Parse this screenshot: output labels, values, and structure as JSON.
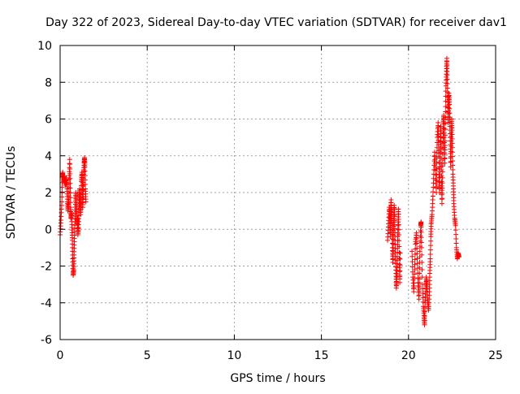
{
  "chart_data": {
    "type": "scatter",
    "title": "Day 322 of 2023, Sidereal Day-to-day VTEC variation (SDTVAR) for receiver dav1",
    "xlabel": "GPS time / hours",
    "ylabel": "SDTVAR / TECUs",
    "xlim": [
      0,
      25
    ],
    "ylim": [
      -6,
      10
    ],
    "xticks": [
      0,
      5,
      10,
      15,
      20,
      25
    ],
    "yticks": [
      -6,
      -4,
      -2,
      0,
      2,
      4,
      6,
      8,
      10
    ],
    "grid": true,
    "marker": "+",
    "colors": {
      "series": "#ff0000",
      "grid": "#a0a0a0",
      "frame": "#000000"
    },
    "series": [
      {
        "name": "SDTVAR",
        "segments": [
          [
            0.0,
            -0.3
          ],
          [
            0.05,
            0.5
          ],
          [
            0.1,
            1.5
          ],
          [
            0.12,
            2.8
          ],
          [
            0.15,
            3.1
          ],
          [
            0.2,
            2.6
          ],
          [
            0.25,
            2.9
          ],
          [
            0.3,
            2.4
          ],
          [
            0.35,
            2.8
          ],
          [
            0.4,
            2.2
          ],
          [
            0.42,
            1.5
          ],
          [
            0.45,
            1.0
          ],
          [
            0.5,
            1.6
          ],
          [
            0.52,
            2.7
          ],
          [
            0.55,
            3.8
          ],
          [
            0.58,
            2.5
          ],
          [
            0.6,
            1.2
          ],
          [
            0.62,
            0.6
          ],
          [
            0.65,
            0.9
          ],
          [
            0.68,
            0.1
          ],
          [
            0.7,
            -0.6
          ],
          [
            0.72,
            -1.6
          ],
          [
            0.75,
            -2.5
          ],
          [
            0.78,
            -2.2
          ],
          [
            0.8,
            -1.4
          ],
          [
            0.82,
            -0.5
          ],
          [
            0.85,
            0.4
          ],
          [
            0.88,
            1.2
          ],
          [
            0.9,
            2.0
          ],
          [
            0.92,
            1.6
          ],
          [
            0.95,
            0.8
          ],
          [
            0.98,
            0.3
          ],
          [
            1.0,
            0.6
          ],
          [
            1.02,
            -0.3
          ],
          [
            1.05,
            0.1
          ],
          [
            1.08,
            0.9
          ],
          [
            1.1,
            1.8
          ],
          [
            1.12,
            2.2
          ],
          [
            1.15,
            1.4
          ],
          [
            1.18,
            0.8
          ],
          [
            1.2,
            1.5
          ],
          [
            1.22,
            2.6
          ],
          [
            1.25,
            3.1
          ],
          [
            1.28,
            2.4
          ],
          [
            1.3,
            1.2
          ],
          [
            1.32,
            1.9
          ],
          [
            1.35,
            3.0
          ],
          [
            1.38,
            3.6
          ],
          [
            1.4,
            3.9
          ],
          [
            1.42,
            3.4
          ],
          [
            1.45,
            2.2
          ],
          [
            1.48,
            1.5
          ]
        ],
        "segment2": [
          [
            18.8,
            -0.6
          ],
          [
            18.85,
            0.3
          ],
          [
            18.9,
            1.2
          ],
          [
            18.92,
            0.6
          ],
          [
            18.95,
            -0.4
          ],
          [
            18.98,
            0.8
          ],
          [
            19.0,
            1.6
          ],
          [
            19.02,
            0.9
          ],
          [
            19.05,
            0.2
          ],
          [
            19.08,
            -1.0
          ],
          [
            19.1,
            -1.8
          ],
          [
            19.12,
            -0.8
          ],
          [
            19.15,
            0.4
          ],
          [
            19.18,
            1.3
          ],
          [
            19.2,
            0.7
          ],
          [
            19.22,
            -0.4
          ],
          [
            19.25,
            -1.5
          ],
          [
            19.28,
            -2.4
          ],
          [
            19.3,
            -3.2
          ],
          [
            19.32,
            -2.6
          ],
          [
            19.35,
            -1.7
          ],
          [
            19.38,
            -0.6
          ],
          [
            19.4,
            0.4
          ],
          [
            19.42,
            1.1
          ],
          [
            19.45,
            -0.3
          ],
          [
            19.48,
            -1.9
          ],
          [
            19.5,
            -2.9
          ],
          [
            19.52,
            -1.3
          ],
          [
            20.2,
            -1.2
          ],
          [
            20.25,
            -2.6
          ],
          [
            20.3,
            -3.4
          ],
          [
            20.35,
            -2.2
          ],
          [
            20.4,
            -0.8
          ],
          [
            20.45,
            -0.2
          ],
          [
            20.5,
            -1.6
          ],
          [
            20.55,
            -2.9
          ],
          [
            20.6,
            -3.8
          ],
          [
            20.62,
            -2.7
          ],
          [
            20.65,
            -1.2
          ],
          [
            20.7,
            0.2
          ],
          [
            20.72,
            0.4
          ],
          [
            20.75,
            -1.0
          ],
          [
            20.8,
            -3.0
          ],
          [
            20.85,
            -4.2
          ],
          [
            20.9,
            -4.8
          ],
          [
            20.92,
            -5.2
          ],
          [
            20.95,
            -4.0
          ],
          [
            21.0,
            -3.2
          ],
          [
            21.02,
            -2.6
          ],
          [
            21.05,
            -3.1
          ],
          [
            21.1,
            -3.9
          ],
          [
            21.15,
            -4.4
          ],
          [
            21.2,
            -3.4
          ],
          [
            21.22,
            -2.4
          ],
          [
            21.25,
            -1.6
          ],
          [
            21.28,
            -0.4
          ],
          [
            21.3,
            0.3
          ],
          [
            21.35,
            0.8
          ],
          [
            21.4,
            1.8
          ],
          [
            21.45,
            3.0
          ],
          [
            21.5,
            4.2
          ],
          [
            21.55,
            3.2
          ],
          [
            21.6,
            2.0
          ],
          [
            21.62,
            3.6
          ],
          [
            21.65,
            5.0
          ],
          [
            21.7,
            5.8
          ],
          [
            21.72,
            4.6
          ],
          [
            21.75,
            3.0
          ],
          [
            21.78,
            2.0
          ],
          [
            21.8,
            3.4
          ],
          [
            21.82,
            4.6
          ],
          [
            21.85,
            5.6
          ],
          [
            21.88,
            4.2
          ],
          [
            21.9,
            2.6
          ],
          [
            21.92,
            1.4
          ],
          [
            21.95,
            2.8
          ],
          [
            21.98,
            4.4
          ],
          [
            22.0,
            5.8
          ],
          [
            22.02,
            6.2
          ],
          [
            22.05,
            5.0
          ],
          [
            22.08,
            3.6
          ],
          [
            22.1,
            4.8
          ],
          [
            22.12,
            6.4
          ],
          [
            22.15,
            7.8
          ],
          [
            22.18,
            8.6
          ],
          [
            22.2,
            9.3
          ],
          [
            22.22,
            8.4
          ],
          [
            22.25,
            7.2
          ],
          [
            22.28,
            5.8
          ],
          [
            22.3,
            6.6
          ],
          [
            22.32,
            7.4
          ],
          [
            22.35,
            6.8
          ],
          [
            22.38,
            5.6
          ],
          [
            22.4,
            4.6
          ],
          [
            22.42,
            3.4
          ],
          [
            22.45,
            4.8
          ],
          [
            22.48,
            6.0
          ],
          [
            22.5,
            5.4
          ],
          [
            22.52,
            4.2
          ],
          [
            22.55,
            3.0
          ],
          [
            22.58,
            2.2
          ],
          [
            22.6,
            1.4
          ],
          [
            22.65,
            0.6
          ],
          [
            22.7,
            0.2
          ],
          [
            22.75,
            -1.0
          ],
          [
            22.8,
            -1.6
          ],
          [
            22.85,
            -1.3
          ],
          [
            22.9,
            -1.5
          ]
        ]
      }
    ]
  }
}
